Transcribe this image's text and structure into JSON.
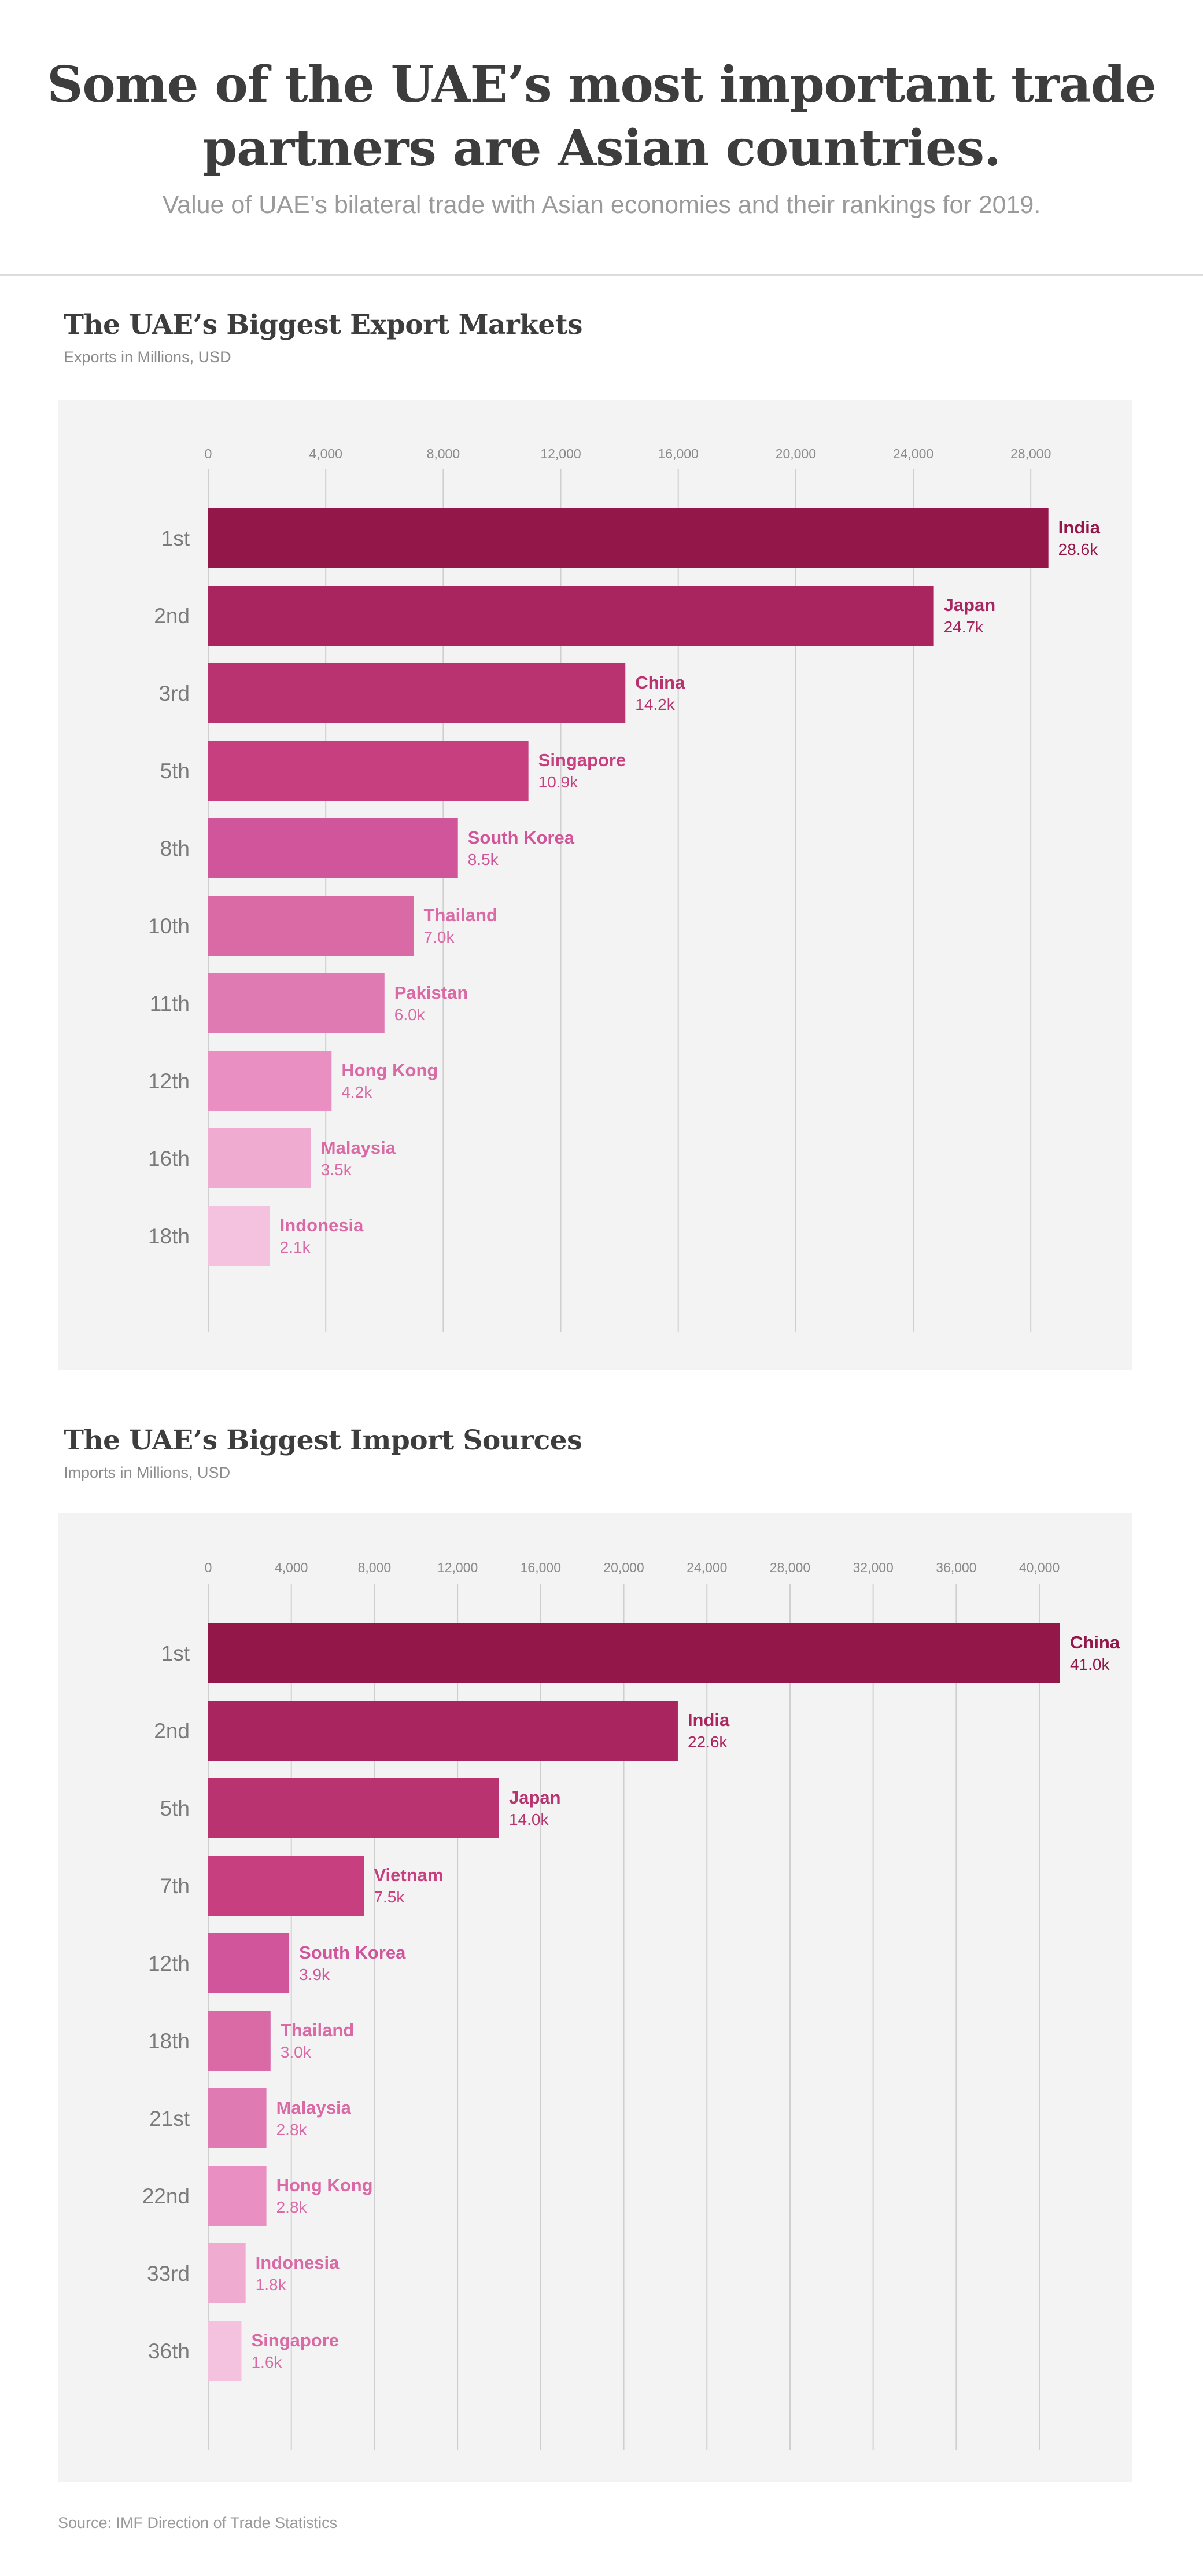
{
  "header": {
    "title": "Some of the UAE’s most important trade partners are Asian countries.",
    "subtitle": "Value of UAE’s bilateral trade with Asian economies and their rankings for 2019."
  },
  "source": "Source: IMF Direction of Trade Statistics",
  "chart_data": [
    {
      "type": "bar",
      "orientation": "horizontal",
      "title": "The UAE’s Biggest Export Markets",
      "subtitle": "Exports in Millions, USD",
      "xlim": [
        0,
        29000
      ],
      "xticks": [
        0,
        4000,
        8000,
        12000,
        16000,
        20000,
        24000,
        28000
      ],
      "xtick_labels": [
        "0",
        "4,000",
        "8,000",
        "12,000",
        "16,000",
        "20,000",
        "24,000",
        "28,000"
      ],
      "grid": true,
      "categories": [
        "India",
        "Japan",
        "China",
        "Singapore",
        "South Korea",
        "Thailand",
        "Pakistan",
        "Hong Kong",
        "Malaysia",
        "Indonesia"
      ],
      "ranks": [
        "1st",
        "2nd",
        "3rd",
        "5th",
        "8th",
        "10th",
        "11th",
        "12th",
        "16th",
        "18th"
      ],
      "values": [
        28600,
        24700,
        14200,
        10900,
        8500,
        7000,
        6000,
        4200,
        3500,
        2100
      ],
      "value_labels": [
        "28.6k",
        "24.7k",
        "14.2k",
        "10.9k",
        "8.5k",
        "7.0k",
        "6.0k",
        "4.2k",
        "3.5k",
        "2.1k"
      ],
      "bar_colors": [
        "#94174a",
        "#a8255f",
        "#b8336f",
        "#c83f80",
        "#d0559a",
        "#d96aa6",
        "#e07ab2",
        "#ea8fc1",
        "#f0abd1",
        "#f4c2de"
      ],
      "label_colors": [
        "#94174a",
        "#a8255f",
        "#b8336f",
        "#c83f80",
        "#d0559a",
        "#d96aa6",
        "#d96aa6",
        "#d96aa6",
        "#d96aa6",
        "#d96aa6"
      ]
    },
    {
      "type": "bar",
      "orientation": "horizontal",
      "title": "The UAE’s Biggest Import Sources",
      "subtitle": "Imports in Millions, USD",
      "xlim": [
        0,
        41000
      ],
      "xticks": [
        0,
        4000,
        8000,
        12000,
        16000,
        20000,
        24000,
        28000,
        32000,
        36000,
        40000
      ],
      "xtick_labels": [
        "0",
        "4,000",
        "8,000",
        "12,000",
        "16,000",
        "20,000",
        "24,000",
        "28,000",
        "32,000",
        "36,000",
        "40,000"
      ],
      "grid": true,
      "categories": [
        "China",
        "India",
        "Japan",
        "Vietnam",
        "South Korea",
        "Thailand",
        "Malaysia",
        "Hong Kong",
        "Indonesia",
        "Singapore"
      ],
      "ranks": [
        "1st",
        "2nd",
        "5th",
        "7th",
        "12th",
        "18th",
        "21st",
        "22nd",
        "33rd",
        "36th"
      ],
      "values": [
        41000,
        22600,
        14000,
        7500,
        3900,
        3000,
        2800,
        2800,
        1800,
        1600
      ],
      "value_labels": [
        "41.0k",
        "22.6k",
        "14.0k",
        "7.5k",
        "3.9k",
        "3.0k",
        "2.8k",
        "2.8k",
        "1.8k",
        "1.6k"
      ],
      "bar_colors": [
        "#94174a",
        "#a8255f",
        "#b8336f",
        "#c83f80",
        "#d0559a",
        "#d96aa6",
        "#e07ab2",
        "#ea8fc1",
        "#f0abd1",
        "#f4c2de"
      ],
      "label_colors": [
        "#94174a",
        "#a8255f",
        "#b8336f",
        "#c83f80",
        "#d0559a",
        "#d96aa6",
        "#d96aa6",
        "#d96aa6",
        "#d96aa6",
        "#d96aa6"
      ]
    }
  ]
}
